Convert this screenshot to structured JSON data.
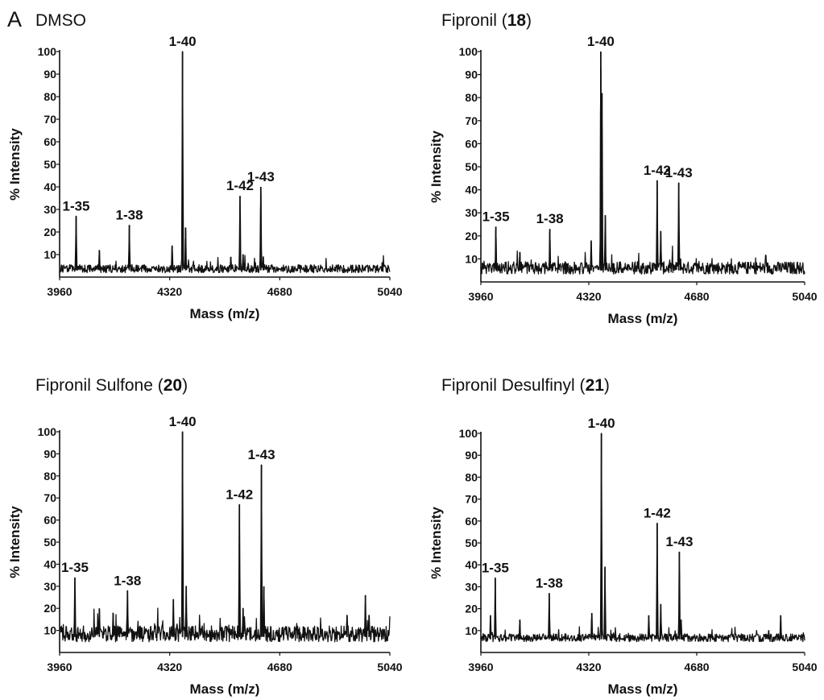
{
  "panel_letter": "A",
  "chart_data": [
    {
      "type": "line",
      "title": "DMSO",
      "title_bold": "",
      "xlabel": "Mass (m/z)",
      "ylabel": "% Intensity",
      "xlim": [
        3960,
        5040
      ],
      "ylim": [
        0,
        100
      ],
      "xticks": [
        3960,
        4320,
        4680,
        5040
      ],
      "yticks": [
        10,
        20,
        30,
        40,
        50,
        60,
        70,
        80,
        90,
        100
      ],
      "baseline": 3,
      "noise": 2,
      "peaks": [
        {
          "x": 4014,
          "y": 27,
          "label": "1-35"
        },
        {
          "x": 4090,
          "y": 12,
          "label": ""
        },
        {
          "x": 4188,
          "y": 23,
          "label": "1-38"
        },
        {
          "x": 4328,
          "y": 14,
          "label": ""
        },
        {
          "x": 4362,
          "y": 100,
          "label": "1-40"
        },
        {
          "x": 4372,
          "y": 22,
          "label": ""
        },
        {
          "x": 4520,
          "y": 9,
          "label": ""
        },
        {
          "x": 4550,
          "y": 36,
          "label": "1-42"
        },
        {
          "x": 4560,
          "y": 10,
          "label": ""
        },
        {
          "x": 4618,
          "y": 40,
          "label": "1-43"
        },
        {
          "x": 4626,
          "y": 9,
          "label": ""
        }
      ]
    },
    {
      "type": "line",
      "title": "Fipronil (",
      "title_bold": "18",
      "title_end": ")",
      "xlabel": "Mass (m/z)",
      "ylabel": "% Intensity",
      "xlim": [
        3960,
        5040
      ],
      "ylim": [
        0,
        100
      ],
      "xticks": [
        3960,
        4320,
        4680,
        5040
      ],
      "yticks": [
        10,
        20,
        30,
        40,
        50,
        60,
        70,
        80,
        90,
        100
      ],
      "baseline": 5,
      "noise": 3,
      "peaks": [
        {
          "x": 4010,
          "y": 24,
          "label": "1-35"
        },
        {
          "x": 4090,
          "y": 13,
          "label": ""
        },
        {
          "x": 4190,
          "y": 23,
          "label": "1-38"
        },
        {
          "x": 4328,
          "y": 18,
          "label": ""
        },
        {
          "x": 4360,
          "y": 100,
          "label": "1-40"
        },
        {
          "x": 4364,
          "y": 82,
          "label": ""
        },
        {
          "x": 4375,
          "y": 29,
          "label": ""
        },
        {
          "x": 4548,
          "y": 44,
          "label": "1-42"
        },
        {
          "x": 4560,
          "y": 22,
          "label": ""
        },
        {
          "x": 4620,
          "y": 43,
          "label": "1-43"
        },
        {
          "x": 4626,
          "y": 10,
          "label": ""
        }
      ]
    },
    {
      "type": "line",
      "title": "Fipronil Sulfone (",
      "title_bold": "20",
      "title_end": ")",
      "xlabel": "Mass (m/z)",
      "ylabel": "% Intensity",
      "xlim": [
        3960,
        5040
      ],
      "ylim": [
        0,
        100
      ],
      "xticks": [
        3960,
        4320,
        4680,
        5040
      ],
      "yticks": [
        10,
        20,
        30,
        40,
        50,
        60,
        70,
        80,
        90,
        100
      ],
      "baseline": 7,
      "noise": 4,
      "peaks": [
        {
          "x": 4010,
          "y": 34,
          "label": "1-35"
        },
        {
          "x": 4090,
          "y": 20,
          "label": ""
        },
        {
          "x": 4135,
          "y": 18,
          "label": ""
        },
        {
          "x": 4182,
          "y": 28,
          "label": "1-38"
        },
        {
          "x": 4332,
          "y": 24,
          "label": ""
        },
        {
          "x": 4362,
          "y": 100,
          "label": "1-40"
        },
        {
          "x": 4374,
          "y": 30,
          "label": ""
        },
        {
          "x": 4548,
          "y": 67,
          "label": "1-42"
        },
        {
          "x": 4560,
          "y": 20,
          "label": ""
        },
        {
          "x": 4620,
          "y": 85,
          "label": "1-43"
        },
        {
          "x": 4628,
          "y": 30,
          "label": ""
        },
        {
          "x": 4900,
          "y": 17,
          "label": ""
        },
        {
          "x": 4960,
          "y": 26,
          "label": ""
        },
        {
          "x": 4972,
          "y": 17,
          "label": ""
        }
      ]
    },
    {
      "type": "line",
      "title": "Fipronil Desulfinyl (",
      "title_bold": "21",
      "title_end": ")",
      "xlabel": "Mass (m/z)",
      "ylabel": "% Intensity",
      "xlim": [
        3960,
        5040
      ],
      "ylim": [
        0,
        100
      ],
      "xticks": [
        3960,
        4320,
        4680,
        5040
      ],
      "yticks": [
        10,
        20,
        30,
        40,
        50,
        60,
        70,
        80,
        90,
        100
      ],
      "baseline": 6,
      "noise": 2,
      "peaks": [
        {
          "x": 3992,
          "y": 17,
          "label": ""
        },
        {
          "x": 4008,
          "y": 34,
          "label": "1-35"
        },
        {
          "x": 4090,
          "y": 15,
          "label": ""
        },
        {
          "x": 4188,
          "y": 27,
          "label": "1-38"
        },
        {
          "x": 4330,
          "y": 18,
          "label": ""
        },
        {
          "x": 4362,
          "y": 100,
          "label": "1-40"
        },
        {
          "x": 4374,
          "y": 39,
          "label": ""
        },
        {
          "x": 4520,
          "y": 17,
          "label": ""
        },
        {
          "x": 4548,
          "y": 59,
          "label": "1-42"
        },
        {
          "x": 4560,
          "y": 22,
          "label": ""
        },
        {
          "x": 4622,
          "y": 46,
          "label": "1-43"
        },
        {
          "x": 4628,
          "y": 15,
          "label": ""
        },
        {
          "x": 4920,
          "y": 10,
          "label": ""
        },
        {
          "x": 4960,
          "y": 17,
          "label": ""
        }
      ]
    }
  ]
}
